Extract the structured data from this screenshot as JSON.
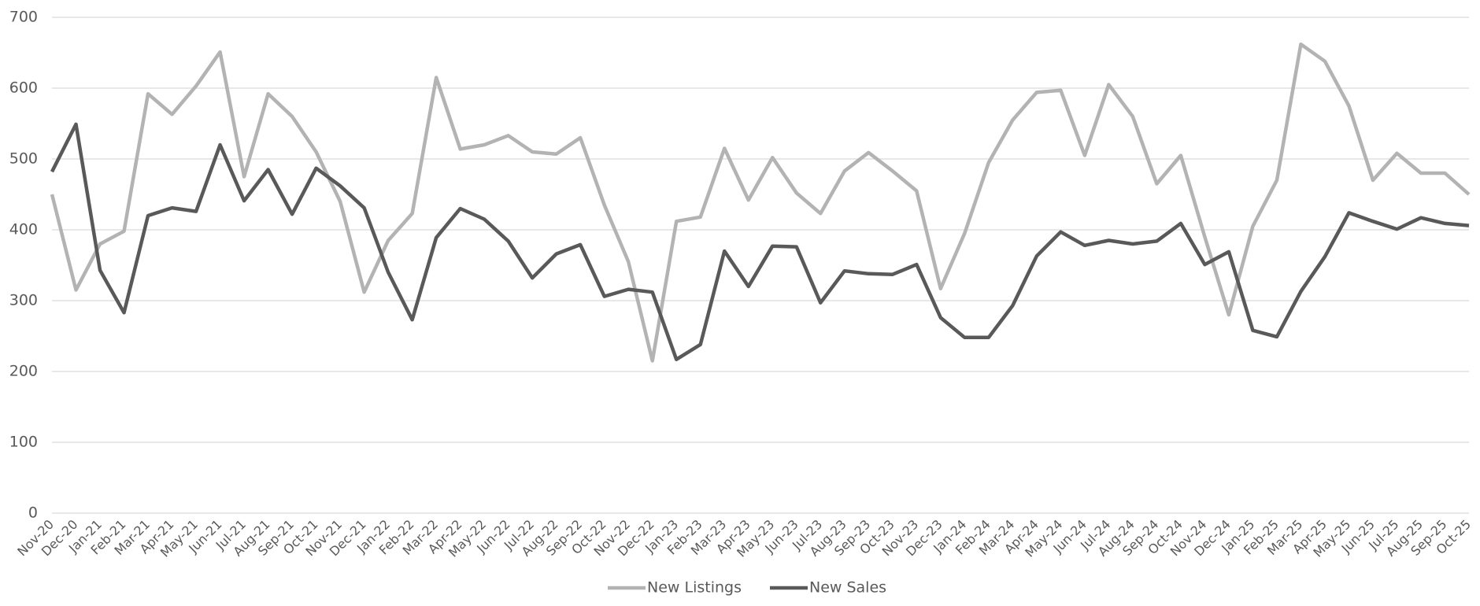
{
  "chart_data": {
    "type": "line",
    "categories": [
      "Nov-20",
      "Dec-20",
      "Jan-21",
      "Feb-21",
      "Mar-21",
      "Apr-21",
      "May-21",
      "Jun-21",
      "Jul-21",
      "Aug-21",
      "Sep-21",
      "Oct-21",
      "Nov-21",
      "Dec-21",
      "Jan-22",
      "Feb-22",
      "Mar-22",
      "Apr-22",
      "May-22",
      "Jun-22",
      "Jul-22",
      "Aug-22",
      "Sep-22",
      "Oct-22",
      "Nov-22",
      "Dec-22",
      "Jan-23",
      "Feb-23",
      "Mar-23",
      "Apr-23",
      "May-23",
      "Jun-23",
      "Jul-23",
      "Aug-23",
      "Sep-23",
      "Oct-23",
      "Nov-23",
      "Dec-23",
      "Jan-24",
      "Feb-24",
      "Mar-24",
      "Apr-24",
      "May-24",
      "Jun-24",
      "Jul-24",
      "Aug-24",
      "Sep-24",
      "Oct-24",
      "Nov-24",
      "Dec-24",
      "Jan-25",
      "Feb-25",
      "Mar-25",
      "Apr-25",
      "May-25",
      "Jun-25",
      "Jul-25",
      "Aug-25",
      "Sep-25",
      "Oct-25"
    ],
    "series": [
      {
        "name": "New Listings",
        "color": "#b3b3b3",
        "values": [
          450,
          315,
          380,
          398,
          592,
          563,
          603,
          651,
          475,
          592,
          560,
          510,
          440,
          312,
          385,
          423,
          615,
          514,
          520,
          533,
          510,
          507,
          530,
          435,
          355,
          215,
          412,
          418,
          515,
          442,
          502,
          452,
          423,
          483,
          509,
          483,
          455,
          317,
          395,
          495,
          555,
          594,
          597,
          505,
          605,
          560,
          465,
          505,
          390,
          280,
          405,
          470,
          662,
          638,
          575,
          470,
          508,
          480,
          480,
          450
        ]
      },
      {
        "name": "New Sales",
        "color": "#595959",
        "values": [
          482,
          549,
          343,
          283,
          420,
          431,
          426,
          520,
          441,
          485,
          422,
          487,
          462,
          431,
          340,
          273,
          389,
          430,
          415,
          384,
          332,
          366,
          379,
          306,
          316,
          312,
          217,
          238,
          370,
          320,
          377,
          376,
          297,
          342,
          338,
          337,
          351,
          276,
          248,
          248,
          293,
          363,
          397,
          378,
          385,
          380,
          384,
          409,
          351,
          369,
          258,
          249,
          313,
          362,
          424,
          412,
          401,
          417,
          409,
          406
        ]
      }
    ],
    "ylim": [
      0,
      700
    ],
    "yticks": [
      0,
      100,
      200,
      300,
      400,
      500,
      600,
      700
    ],
    "grid": true,
    "legend": "bottom"
  }
}
